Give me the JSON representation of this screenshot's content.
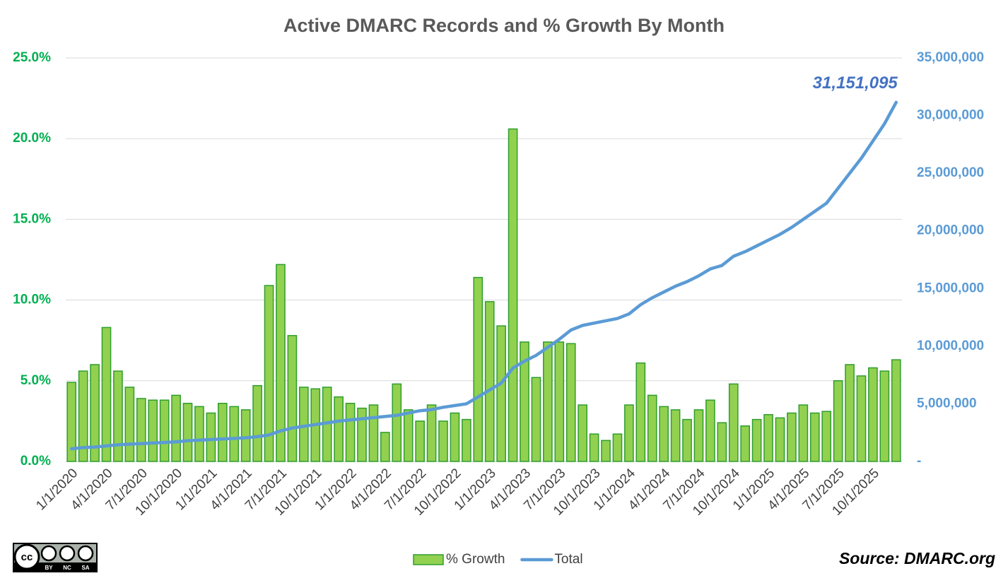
{
  "chart_data": {
    "type": "bar-line",
    "title": "Active DMARC Records and % Growth By Month",
    "source": "Source: DMARC.org",
    "license": {
      "mark": "cc",
      "terms": [
        "BY",
        "NC",
        "SA"
      ]
    },
    "categories": [
      "1/1/2020",
      null,
      null,
      "4/1/2020",
      null,
      null,
      "7/1/2020",
      null,
      null,
      "10/1/2020",
      null,
      null,
      "1/1/2021",
      null,
      null,
      "4/1/2021",
      null,
      null,
      "7/1/2021",
      null,
      null,
      "10/1/2021",
      null,
      null,
      "1/1/2022",
      null,
      null,
      "4/1/2022",
      null,
      null,
      "7/1/2022",
      null,
      null,
      "10/1/2022",
      null,
      null,
      "1/1/2023",
      null,
      null,
      "4/1/2023",
      null,
      null,
      "7/1/2023",
      null,
      null,
      "10/1/2023",
      null,
      null,
      "1/1/2024",
      null,
      null,
      "4/1/2024",
      null,
      null,
      "7/1/2024",
      null,
      null,
      "10/1/2024",
      null,
      null,
      "1/1/2025",
      null,
      null,
      "4/1/2025",
      null,
      null,
      "7/1/2025",
      null,
      null,
      "10/1/2025",
      null,
      null
    ],
    "series": [
      {
        "name": "% Growth",
        "type": "bar",
        "color": "#92d050",
        "edge_color": "#2e9e2e",
        "values": [
          4.9,
          5.6,
          6.0,
          8.3,
          5.6,
          4.6,
          3.9,
          3.8,
          3.8,
          4.1,
          3.6,
          3.4,
          3.0,
          3.6,
          3.4,
          3.2,
          4.7,
          10.9,
          12.2,
          7.8,
          4.6,
          4.5,
          4.6,
          4.0,
          3.6,
          3.3,
          3.5,
          1.8,
          4.8,
          3.2,
          2.5,
          3.5,
          2.5,
          3.0,
          2.6,
          11.4,
          9.9,
          8.4,
          20.6,
          7.4,
          5.2,
          7.4,
          7.4,
          7.3,
          3.5,
          1.7,
          1.3,
          1.7,
          3.5,
          6.1,
          4.1,
          3.4,
          3.2,
          2.6,
          3.2,
          3.8,
          2.4,
          4.8,
          2.2,
          2.6,
          2.9,
          2.7,
          3.0,
          3.5,
          3.0,
          3.1,
          5.0,
          6.0,
          5.3,
          5.8,
          5.6,
          6.3
        ]
      },
      {
        "name": "Total",
        "type": "line",
        "axis": "y2",
        "color": "#5b9bd5",
        "label_color": "#4472c4",
        "values": [
          1100000,
          1200000,
          1250000,
          1350000,
          1450000,
          1500000,
          1550000,
          1600000,
          1650000,
          1700000,
          1800000,
          1850000,
          1900000,
          1950000,
          2000000,
          2050000,
          2150000,
          2300000,
          2650000,
          2900000,
          3050000,
          3200000,
          3350000,
          3500000,
          3600000,
          3700000,
          3800000,
          3900000,
          4000000,
          4200000,
          4400000,
          4500000,
          4700000,
          4850000,
          5000000,
          5600000,
          6200000,
          6800000,
          8100000,
          8700000,
          9200000,
          9900000,
          10600000,
          11400000,
          11800000,
          12000000,
          12200000,
          12400000,
          12800000,
          13600000,
          14200000,
          14700000,
          15200000,
          15600000,
          16100000,
          16700000,
          17000000,
          17800000,
          18200000,
          18700000,
          19200000,
          19700000,
          20300000,
          21000000,
          21700000,
          22400000,
          23700000,
          25000000,
          26300000,
          27800000,
          29300000,
          31151095
        ],
        "value_labels": [
          null,
          null,
          null,
          null,
          null,
          null,
          null,
          null,
          null,
          null,
          null,
          null,
          null,
          null,
          null,
          null,
          null,
          null,
          null,
          null,
          null,
          null,
          null,
          null,
          null,
          null,
          null,
          null,
          null,
          null,
          null,
          null,
          null,
          null,
          null,
          null,
          null,
          null,
          null,
          null,
          null,
          null,
          null,
          null,
          null,
          null,
          null,
          null,
          null,
          null,
          null,
          null,
          null,
          null,
          null,
          null,
          null,
          null,
          null,
          null,
          null,
          null,
          null,
          null,
          null,
          null,
          null,
          null,
          null,
          null,
          null,
          "31,151,095"
        ]
      }
    ],
    "ylim": [
      0,
      25
    ],
    "yticks": [
      {
        "value": 0,
        "label": "0.0%"
      },
      {
        "value": 5,
        "label": "5.0%"
      },
      {
        "value": 10,
        "label": "10.0%"
      },
      {
        "value": 15,
        "label": "15.0%"
      },
      {
        "value": 20,
        "label": "20.0%"
      },
      {
        "value": 25,
        "label": "25.0%"
      }
    ],
    "y_tick_color": "#00b050",
    "y2lim": [
      0,
      35000000
    ],
    "y2ticks": [
      {
        "value": 0,
        "label": "-"
      },
      {
        "value": 5000000,
        "label": "5,000,000"
      },
      {
        "value": 10000000,
        "label": "10,000,000"
      },
      {
        "value": 15000000,
        "label": "15,000,000"
      },
      {
        "value": 20000000,
        "label": "20,000,000"
      },
      {
        "value": 25000000,
        "label": "25,000,000"
      },
      {
        "value": 30000000,
        "label": "30,000,000"
      },
      {
        "value": 35000000,
        "label": "35,000,000"
      }
    ],
    "y2_tick_color": "#5b9bd5",
    "grid": true,
    "legend": "bottom"
  }
}
